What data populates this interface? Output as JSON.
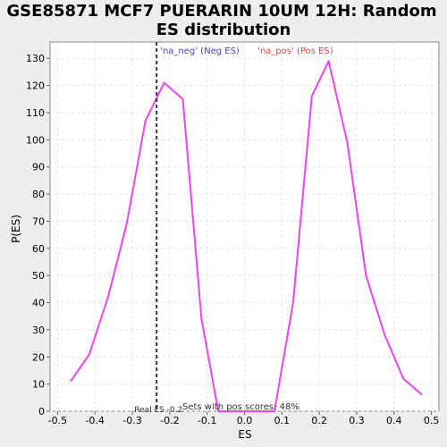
{
  "chart_data": {
    "type": "line",
    "title_line1": "GSE85871 MCF7 PUERARIN 10UM 12H: Random",
    "title_line2": "ES distribution",
    "xlabel": "ES",
    "ylabel": "P(ES)",
    "xlim": [
      -0.52,
      0.52
    ],
    "ylim": [
      0,
      136
    ],
    "x_ticks": [
      "-0.5",
      "-0.4",
      "-0.3",
      "-0.2",
      "-0.1",
      "0.0",
      "0.1",
      "0.2",
      "0.3",
      "0.4",
      "0.5"
    ],
    "y_ticks": [
      "0",
      "10",
      "20",
      "30",
      "40",
      "50",
      "60",
      "70",
      "80",
      "90",
      "100",
      "110",
      "120",
      "130"
    ],
    "grid": true,
    "line_color": "#ee44ee",
    "series": [
      {
        "x": [
          -0.465,
          -0.415,
          -0.365,
          -0.315,
          -0.265,
          -0.215,
          -0.165,
          -0.115,
          -0.07,
          -0.02,
          0.03,
          0.08,
          0.13,
          0.18,
          0.225,
          0.275,
          0.325,
          0.375,
          0.425,
          0.475
        ],
        "values": [
          11,
          21,
          42,
          69,
          107,
          121,
          115,
          34,
          0,
          0,
          0,
          0,
          40,
          116,
          129,
          99,
          50,
          28,
          12,
          6
        ]
      }
    ],
    "real_es": -0.235,
    "real_es_label": "Real ES -0.2",
    "neg_label": "'na_neg' (Neg ES)",
    "pos_label": "'na_pos' (Pos ES)",
    "neg_color": "#4444cc",
    "pos_color": "#dd4444",
    "annotation": "Sets with pos scores: 48%"
  }
}
